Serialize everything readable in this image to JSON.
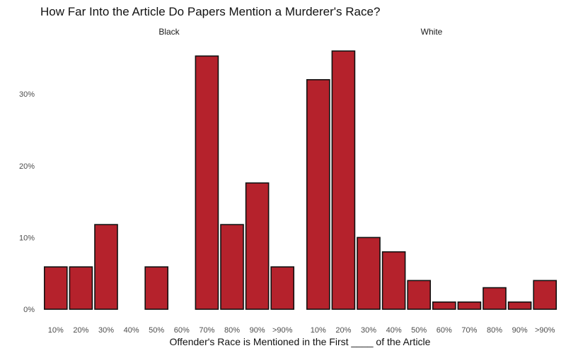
{
  "chart_data": {
    "type": "bar",
    "title": "How Far Into the Article Do Papers Mention a Murderer's Race?",
    "xlabel": "Offender's Race is Mentioned in the First ____ of the Article",
    "ylabel": "",
    "ylim": [
      0,
      0.37
    ],
    "yticks": [
      0,
      0.1,
      0.2,
      0.3
    ],
    "ytick_labels": [
      "0%",
      "10%",
      "20%",
      "30%"
    ],
    "categories": [
      "10%",
      "20%",
      "30%",
      "40%",
      "50%",
      "60%",
      "70%",
      "80%",
      "90%",
      ">90%"
    ],
    "grid": false,
    "legend": "none",
    "colors": {
      "bar_fill": "#b5222c",
      "bar_stroke": "#111111"
    },
    "panels": [
      {
        "name": "Black",
        "values": [
          0.059,
          0.059,
          0.118,
          0,
          0.059,
          0,
          0.353,
          0.118,
          0.176,
          0.059
        ]
      },
      {
        "name": "White",
        "values": [
          0.32,
          0.36,
          0.1,
          0.08,
          0.04,
          0.01,
          0.01,
          0.03,
          0.01,
          0.04
        ]
      }
    ]
  }
}
